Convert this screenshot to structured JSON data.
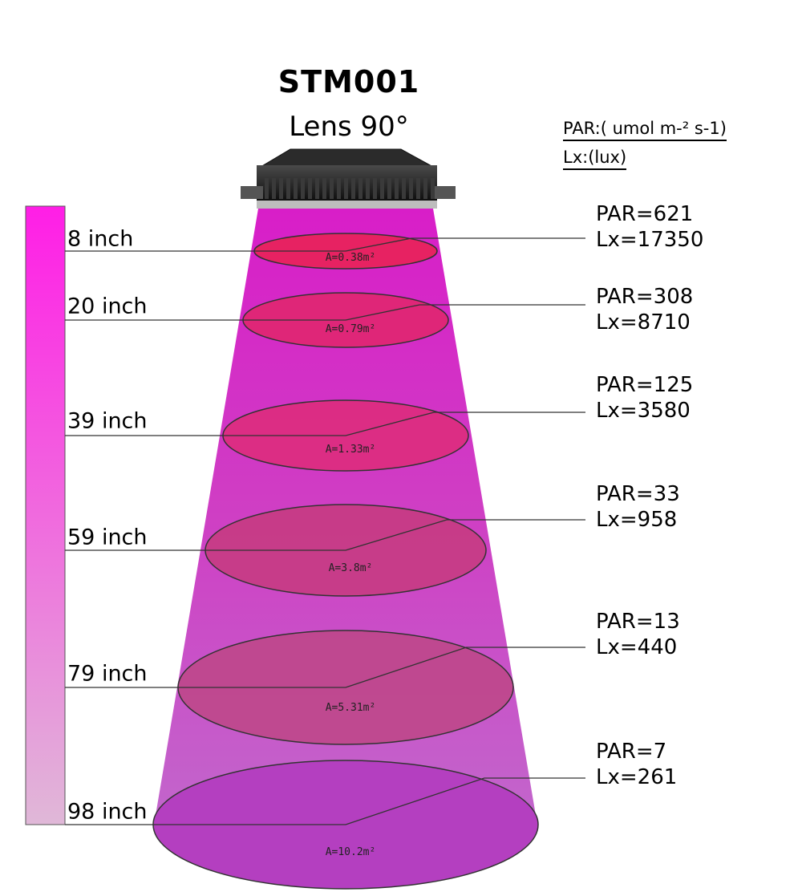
{
  "header": {
    "model": "STM001",
    "lens": "Lens 90°"
  },
  "units": {
    "par": "PAR:( umol m-² s-1)",
    "lx": "Lx:(lux)"
  },
  "colors": {
    "beam_top": "#d21ec4",
    "beam_bottom": "#c262c8",
    "ellipse_top": "#e8224a",
    "ellipse_bottom": "#a23fc0",
    "scale_top": "#ff1ee0",
    "scale_bottom": "#e0b4d8"
  },
  "levels": [
    {
      "height": "8 inch",
      "area": "A=0.38m²",
      "par": "PAR=621",
      "lx": "Lx=17350"
    },
    {
      "height": "20 inch",
      "area": "A=0.79m²",
      "par": "PAR=308",
      "lx": "Lx=8710"
    },
    {
      "height": "39 inch",
      "area": "A=1.33m²",
      "par": "PAR=125",
      "lx": "Lx=3580"
    },
    {
      "height": "59 inch",
      "area": "A=3.8m²",
      "par": "PAR=33",
      "lx": "Lx=958"
    },
    {
      "height": "79 inch",
      "area": "A=5.31m²",
      "par": "PAR=13",
      "lx": "Lx=440"
    },
    {
      "height": "98 inch",
      "area": "A=10.2m²",
      "par": "PAR=7",
      "lx": "Lx=261"
    }
  ]
}
